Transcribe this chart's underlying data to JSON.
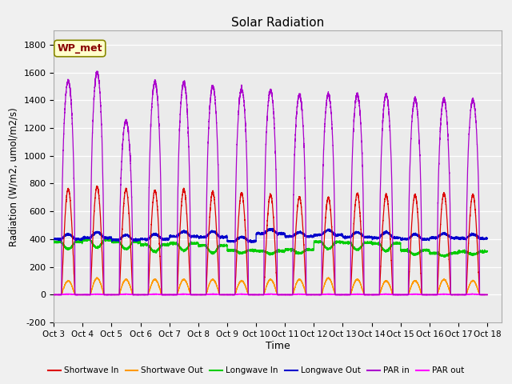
{
  "title": "Solar Radiation",
  "ylabel": "Radiation (W/m2, umol/m2/s)",
  "xlabel": "Time",
  "ylim": [
    -200,
    1900
  ],
  "yticks": [
    -200,
    0,
    200,
    400,
    600,
    800,
    1000,
    1200,
    1400,
    1600,
    1800
  ],
  "n_days": 15,
  "start_day": 3,
  "figure_bg": "#f0f0f0",
  "plot_bg": "#ebebeb",
  "annotation_text": "WP_met",
  "annotation_bg": "#ffffcc",
  "annotation_border": "#888800",
  "annotation_text_color": "#880000",
  "series": {
    "shortwave_in": {
      "color": "#dd0000",
      "label": "Shortwave In",
      "peak_variation": [
        760,
        780,
        760,
        750,
        760,
        740,
        730,
        720,
        700,
        700,
        730,
        720,
        720,
        730,
        720
      ]
    },
    "shortwave_out": {
      "color": "#ff9900",
      "label": "Shortwave Out",
      "peak_variation": [
        100,
        120,
        110,
        110,
        110,
        110,
        100,
        110,
        110,
        120,
        110,
        100,
        100,
        110,
        100
      ]
    },
    "longwave_in": {
      "color": "#00cc00",
      "label": "Longwave In",
      "night_val": [
        380,
        395,
        380,
        360,
        370,
        355,
        320,
        315,
        325,
        380,
        375,
        370,
        320,
        300,
        310
      ],
      "day_dip": [
        50,
        55,
        50,
        50,
        50,
        55,
        20,
        20,
        25,
        50,
        50,
        55,
        30,
        20,
        20
      ]
    },
    "longwave_out": {
      "color": "#0000cc",
      "label": "Longwave Out",
      "night_val": [
        400,
        410,
        395,
        400,
        420,
        415,
        385,
        440,
        420,
        430,
        415,
        410,
        400,
        410,
        405
      ],
      "day_bump": [
        35,
        40,
        35,
        35,
        35,
        40,
        30,
        30,
        30,
        35,
        35,
        40,
        35,
        30,
        30
      ]
    },
    "par_in": {
      "color": "#aa00cc",
      "label": "PAR in",
      "peak_variation": [
        1540,
        1600,
        1250,
        1530,
        1530,
        1500,
        1480,
        1470,
        1440,
        1440,
        1440,
        1440,
        1410,
        1410,
        1400
      ]
    },
    "par_out": {
      "color": "#ff00ff",
      "label": "PAR out",
      "peak_variation": [
        5,
        5,
        5,
        5,
        5,
        5,
        5,
        5,
        5,
        5,
        5,
        5,
        5,
        5,
        5
      ]
    }
  }
}
